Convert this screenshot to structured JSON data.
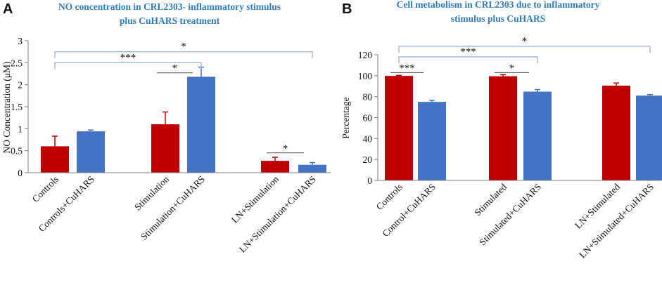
{
  "colors": {
    "red": "#c00000",
    "blue": "#4472c4",
    "bracket": "#8faadc",
    "axis": "#7f7f7f"
  },
  "chart_data": [
    {
      "panel": "A",
      "type": "bar",
      "title_lines": [
        "NO concentration in CRL2303- inflammatory stimulus",
        "plus CuHARS treatment"
      ],
      "ylabel": "NO Concentration (μM)",
      "ylim": [
        0,
        3
      ],
      "yticks": [
        0,
        0.5,
        1,
        1.5,
        2,
        2.5,
        3
      ],
      "ytick_labels": [
        "0",
        "0.5",
        "1",
        "1.5",
        "2",
        "2.5",
        "3"
      ],
      "categories": [
        "Controls",
        "Controls+CuHARS",
        "Stimulation",
        "Stimulation+CuHARS",
        "LN+Stimulation",
        "LN+Stimulation+CuHARS"
      ],
      "values": [
        0.6,
        0.94,
        1.1,
        2.18,
        0.27,
        0.18
      ],
      "errors": [
        0.23,
        0.03,
        0.28,
        0.22,
        0.08,
        0.05
      ],
      "bar_colors": [
        "red",
        "blue",
        "red",
        "blue",
        "red",
        "blue"
      ],
      "significance": [
        {
          "from": 3,
          "to": 4,
          "label": "*",
          "level": 2.27,
          "style": "line"
        },
        {
          "from": 5,
          "to": 6,
          "label": "*",
          "level": 0.45,
          "style": "line"
        },
        {
          "from": 1,
          "to": 4,
          "label": "***",
          "level": 2.5,
          "style": "bracket"
        },
        {
          "from": 1,
          "to": 6,
          "label": "*",
          "level": 2.75,
          "style": "bracket"
        }
      ]
    },
    {
      "panel": "B",
      "type": "bar",
      "title_lines": [
        "Cell metabolism in CRL2303 due to inflammatory",
        "stimulus plus CuHARS"
      ],
      "ylabel": "Percentage",
      "ylim": [
        0,
        120
      ],
      "yticks": [
        0,
        20,
        40,
        60,
        80,
        100,
        120
      ],
      "ytick_labels": [
        "0",
        "20",
        "40",
        "60",
        "80",
        "100",
        "120"
      ],
      "categories": [
        "Controls",
        "Control+CuHARS",
        "Stimulated",
        "Stimulated+CuHARS",
        "LN+Stimulated",
        "LN+Stimulated+CuHARS"
      ],
      "values": [
        99.8,
        75,
        99.5,
        84.8,
        90.5,
        81
      ],
      "errors": [
        0.5,
        1.5,
        1.5,
        2.0,
        2.5,
        1.0
      ],
      "bar_colors": [
        "red",
        "blue",
        "red",
        "blue",
        "red",
        "blue"
      ],
      "significance": [
        {
          "from": 1,
          "to": 2,
          "label": "***",
          "level": 103,
          "style": "line"
        },
        {
          "from": 3,
          "to": 4,
          "label": "*",
          "level": 103,
          "style": "line"
        },
        {
          "from": 1,
          "to": 4,
          "label": "***",
          "level": 118,
          "style": "bracket"
        },
        {
          "from": 1,
          "to": 6,
          "label": "*",
          "level": 128,
          "style": "bracket"
        }
      ]
    }
  ]
}
